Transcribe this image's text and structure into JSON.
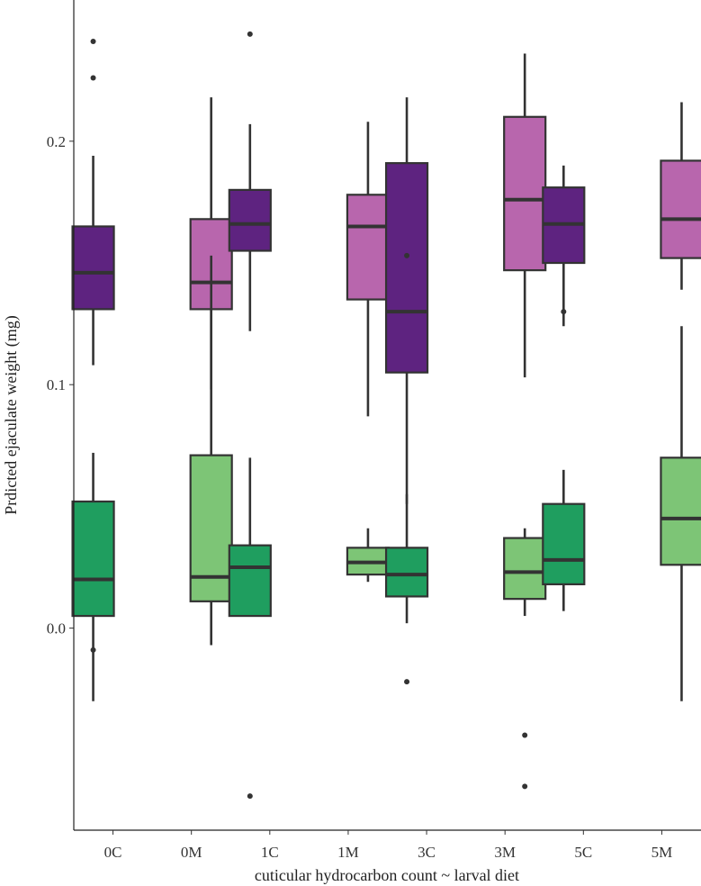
{
  "chart_data": {
    "type": "boxplot",
    "title": "",
    "xlabel": "cuticular hydrocarbon count ~ larval diet",
    "ylabel": "Prdicted ejaculate weight (mg)",
    "ylim": [
      -0.083,
      0.258
    ],
    "yticks": [
      0.0,
      0.1,
      0.2
    ],
    "ytick_labels": [
      "0.0",
      "0.1",
      "0.2"
    ],
    "categories": [
      "0C",
      "0M",
      "1C",
      "1M",
      "3C",
      "3M",
      "5C",
      "5M"
    ],
    "colors": {
      "C_upper": "#5e2380",
      "M_upper": "#b866ad",
      "C_lower": "#1f9e5f",
      "M_lower": "#7dc576",
      "line": "#333333"
    },
    "series": [
      {
        "name": "upper",
        "boxes": [
          {
            "category": "0C",
            "min": 0.108,
            "q1": 0.131,
            "median": 0.146,
            "q3": 0.165,
            "max": 0.194,
            "outliers": [
              0.241,
              0.226
            ]
          },
          {
            "category": "0M",
            "min": 0.098,
            "q1": 0.131,
            "median": 0.142,
            "q3": 0.168,
            "max": 0.218,
            "outliers": []
          },
          {
            "category": "1C",
            "min": 0.122,
            "q1": 0.155,
            "median": 0.166,
            "q3": 0.18,
            "max": 0.207,
            "outliers": [
              0.244
            ]
          },
          {
            "category": "1M",
            "min": 0.087,
            "q1": 0.135,
            "median": 0.165,
            "q3": 0.178,
            "max": 0.208,
            "outliers": []
          },
          {
            "category": "3C",
            "min": 0.051,
            "q1": 0.105,
            "median": 0.13,
            "q3": 0.191,
            "max": 0.218,
            "outliers": [
              0.153
            ]
          },
          {
            "category": "3M",
            "min": 0.103,
            "q1": 0.147,
            "median": 0.176,
            "q3": 0.21,
            "max": 0.236,
            "outliers": []
          },
          {
            "category": "5C",
            "min": 0.124,
            "q1": 0.15,
            "median": 0.166,
            "q3": 0.181,
            "max": 0.19,
            "outliers": [
              0.13
            ]
          },
          {
            "category": "5M",
            "min": 0.139,
            "q1": 0.152,
            "median": 0.168,
            "q3": 0.192,
            "max": 0.216,
            "outliers": []
          }
        ]
      },
      {
        "name": "lower",
        "boxes": [
          {
            "category": "0C",
            "min": -0.03,
            "q1": 0.005,
            "median": 0.02,
            "q3": 0.052,
            "max": 0.072,
            "outliers": [
              -0.009
            ]
          },
          {
            "category": "0M",
            "min": -0.007,
            "q1": 0.011,
            "median": 0.021,
            "q3": 0.071,
            "max": 0.153,
            "outliers": []
          },
          {
            "category": "1C",
            "min": 0.005,
            "q1": 0.005,
            "median": 0.025,
            "q3": 0.034,
            "max": 0.07,
            "outliers": [
              -0.069
            ]
          },
          {
            "category": "1M",
            "min": 0.019,
            "q1": 0.022,
            "median": 0.027,
            "q3": 0.033,
            "max": 0.041,
            "outliers": []
          },
          {
            "category": "3C",
            "min": 0.002,
            "q1": 0.013,
            "median": 0.022,
            "q3": 0.033,
            "max": 0.055,
            "outliers": [
              -0.022
            ]
          },
          {
            "category": "3M",
            "min": 0.005,
            "q1": 0.012,
            "median": 0.023,
            "q3": 0.037,
            "max": 0.041,
            "outliers": [
              -0.044,
              -0.065
            ]
          },
          {
            "category": "5C",
            "min": 0.007,
            "q1": 0.018,
            "median": 0.028,
            "q3": 0.051,
            "max": 0.065,
            "outliers": []
          },
          {
            "category": "5M",
            "min": -0.03,
            "q1": 0.026,
            "median": 0.045,
            "q3": 0.07,
            "max": 0.124,
            "outliers": []
          }
        ]
      }
    ]
  }
}
